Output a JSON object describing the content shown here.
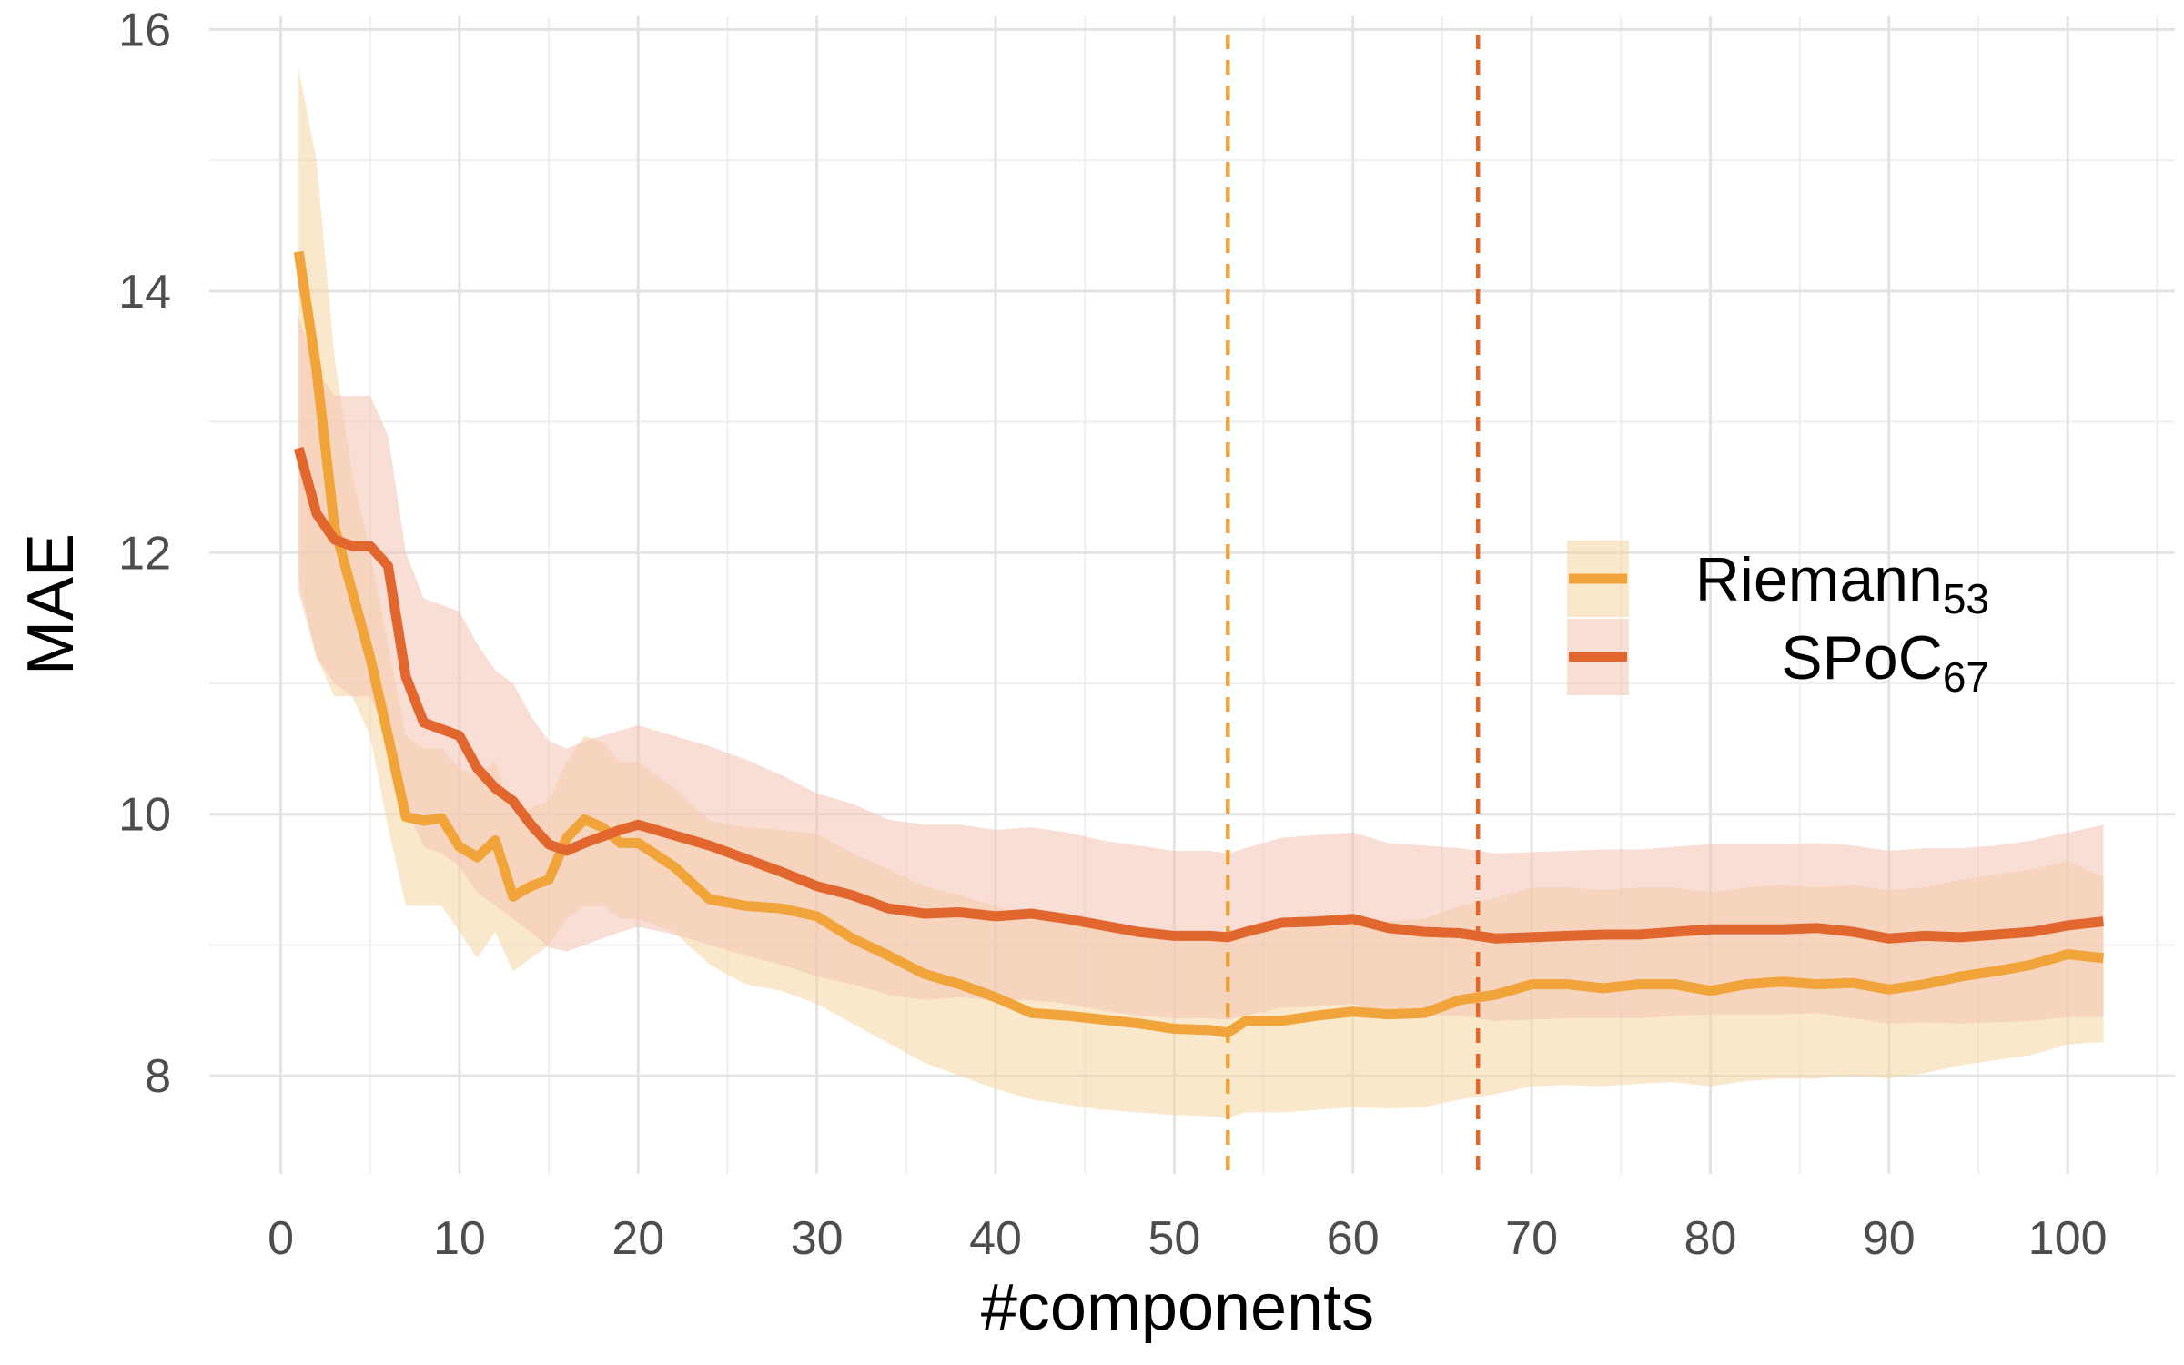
{
  "chart_data": {
    "type": "line",
    "xlabel": "#components",
    "ylabel": "MAE",
    "xlim": [
      -4,
      106
    ],
    "ylim": [
      7.25,
      16.1
    ],
    "x_ticks": [
      0,
      10,
      20,
      30,
      40,
      50,
      60,
      70,
      80,
      90,
      100
    ],
    "y_ticks": [
      8,
      10,
      12,
      14,
      16
    ],
    "grid": true,
    "legend_position": "right",
    "vlines": [
      {
        "x": 53,
        "color": "#F0A43A",
        "style": "dashed"
      },
      {
        "x": 67,
        "color": "#E2672E",
        "style": "dashed"
      }
    ],
    "series": [
      {
        "name": "Riemann",
        "subscript": "53",
        "color": "#F0A43A",
        "band_color": "#F5D6A4",
        "x": [
          1,
          2,
          3,
          4,
          5,
          6,
          7,
          8,
          9,
          10,
          11,
          12,
          13,
          14,
          15,
          16,
          17,
          18,
          19,
          20,
          22,
          24,
          26,
          28,
          30,
          32,
          34,
          36,
          38,
          40,
          42,
          44,
          46,
          48,
          50,
          52,
          53,
          54,
          56,
          58,
          60,
          62,
          64,
          66,
          68,
          70,
          72,
          74,
          76,
          78,
          80,
          82,
          84,
          86,
          88,
          90,
          92,
          94,
          96,
          98,
          100,
          102
        ],
        "y": [
          14.3,
          13.4,
          12.2,
          11.7,
          11.2,
          10.6,
          9.98,
          9.95,
          9.97,
          9.75,
          9.67,
          9.8,
          9.37,
          9.45,
          9.5,
          9.82,
          9.96,
          9.9,
          9.78,
          9.78,
          9.6,
          9.35,
          9.3,
          9.28,
          9.22,
          9.05,
          8.92,
          8.78,
          8.7,
          8.6,
          8.48,
          8.46,
          8.43,
          8.4,
          8.36,
          8.35,
          8.33,
          8.42,
          8.42,
          8.46,
          8.49,
          8.47,
          8.48,
          8.58,
          8.62,
          8.7,
          8.7,
          8.67,
          8.7,
          8.7,
          8.65,
          8.7,
          8.72,
          8.7,
          8.71,
          8.66,
          8.7,
          8.76,
          8.8,
          8.85,
          8.93,
          8.9
        ],
        "lower": [
          11.8,
          11.2,
          10.9,
          10.9,
          10.6,
          9.9,
          9.3,
          9.3,
          9.3,
          9.1,
          8.9,
          9.1,
          8.8,
          8.9,
          9.0,
          9.2,
          9.3,
          9.3,
          9.2,
          9.2,
          9.1,
          8.85,
          8.7,
          8.65,
          8.55,
          8.4,
          8.25,
          8.1,
          8.0,
          7.9,
          7.82,
          7.78,
          7.74,
          7.72,
          7.7,
          7.69,
          7.68,
          7.72,
          7.72,
          7.74,
          7.76,
          7.75,
          7.76,
          7.82,
          7.86,
          7.92,
          7.93,
          7.92,
          7.94,
          7.95,
          7.92,
          7.96,
          7.98,
          7.98,
          8.0,
          7.98,
          8.02,
          8.08,
          8.12,
          8.16,
          8.24,
          8.26
        ],
        "upper": [
          15.7,
          15.0,
          13.5,
          12.6,
          12.0,
          11.3,
          10.6,
          10.5,
          10.5,
          10.35,
          10.3,
          10.4,
          10.0,
          10.05,
          10.1,
          10.4,
          10.6,
          10.55,
          10.4,
          10.4,
          10.2,
          9.95,
          9.9,
          9.88,
          9.85,
          9.7,
          9.58,
          9.45,
          9.38,
          9.3,
          9.2,
          9.18,
          9.15,
          9.12,
          9.08,
          9.06,
          9.04,
          9.12,
          9.12,
          9.16,
          9.2,
          9.18,
          9.2,
          9.3,
          9.36,
          9.44,
          9.44,
          9.42,
          9.44,
          9.44,
          9.4,
          9.44,
          9.46,
          9.44,
          9.46,
          9.42,
          9.44,
          9.5,
          9.54,
          9.58,
          9.64,
          9.52
        ]
      },
      {
        "name": "SPoC",
        "subscript": "67",
        "color": "#E2672E",
        "band_color": "#F3C3B2",
        "x": [
          1,
          2,
          3,
          4,
          5,
          6,
          7,
          8,
          9,
          10,
          11,
          12,
          13,
          14,
          15,
          16,
          17,
          18,
          19,
          20,
          22,
          24,
          26,
          28,
          30,
          32,
          34,
          36,
          38,
          40,
          42,
          44,
          46,
          48,
          50,
          52,
          53,
          54,
          56,
          58,
          60,
          62,
          64,
          66,
          68,
          70,
          72,
          74,
          76,
          78,
          80,
          82,
          84,
          86,
          88,
          90,
          92,
          94,
          96,
          98,
          100,
          102
        ],
        "y": [
          12.8,
          12.3,
          12.1,
          12.05,
          12.05,
          11.9,
          11.05,
          10.7,
          10.65,
          10.6,
          10.35,
          10.2,
          10.1,
          9.92,
          9.77,
          9.72,
          9.78,
          9.83,
          9.88,
          9.92,
          9.84,
          9.76,
          9.66,
          9.56,
          9.45,
          9.38,
          9.28,
          9.24,
          9.25,
          9.22,
          9.24,
          9.2,
          9.15,
          9.1,
          9.07,
          9.07,
          9.06,
          9.1,
          9.17,
          9.18,
          9.2,
          9.13,
          9.1,
          9.09,
          9.05,
          9.06,
          9.07,
          9.08,
          9.08,
          9.1,
          9.12,
          9.12,
          9.12,
          9.13,
          9.1,
          9.05,
          9.07,
          9.06,
          9.08,
          9.1,
          9.15,
          9.18
        ],
        "lower": [
          11.7,
          11.2,
          11.0,
          10.9,
          10.9,
          10.6,
          10.05,
          9.75,
          9.7,
          9.6,
          9.4,
          9.3,
          9.2,
          9.1,
          8.98,
          8.95,
          9.0,
          9.05,
          9.1,
          9.14,
          9.08,
          9.0,
          8.92,
          8.85,
          8.76,
          8.7,
          8.62,
          8.58,
          8.6,
          8.58,
          8.58,
          8.55,
          8.5,
          8.46,
          8.44,
          8.44,
          8.43,
          8.46,
          8.52,
          8.53,
          8.55,
          8.48,
          8.46,
          8.46,
          8.42,
          8.43,
          8.44,
          8.44,
          8.44,
          8.46,
          8.47,
          8.47,
          8.47,
          8.48,
          8.44,
          8.4,
          8.41,
          8.4,
          8.41,
          8.42,
          8.45,
          8.45
        ],
        "upper": [
          13.8,
          13.4,
          13.2,
          13.2,
          13.2,
          12.9,
          12.0,
          11.65,
          11.6,
          11.55,
          11.3,
          11.1,
          11.0,
          10.75,
          10.56,
          10.5,
          10.56,
          10.6,
          10.64,
          10.68,
          10.6,
          10.52,
          10.42,
          10.3,
          10.16,
          10.08,
          9.96,
          9.92,
          9.92,
          9.88,
          9.9,
          9.86,
          9.8,
          9.76,
          9.72,
          9.72,
          9.7,
          9.74,
          9.82,
          9.84,
          9.86,
          9.78,
          9.76,
          9.74,
          9.7,
          9.71,
          9.72,
          9.73,
          9.73,
          9.75,
          9.77,
          9.77,
          9.77,
          9.78,
          9.76,
          9.72,
          9.74,
          9.74,
          9.76,
          9.8,
          9.86,
          9.92
        ]
      }
    ]
  }
}
